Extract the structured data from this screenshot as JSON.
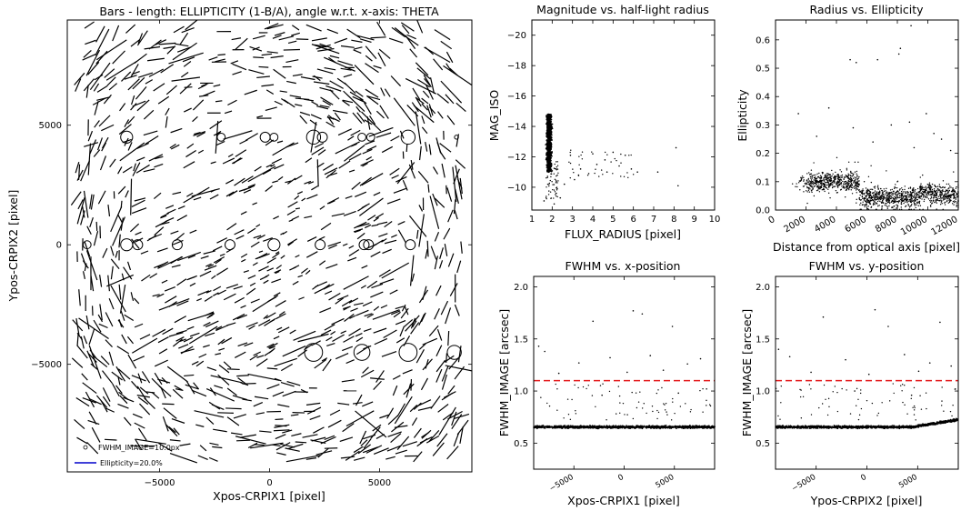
{
  "chart_data": [
    {
      "type": "scatter",
      "title": "Bars - length: ELLIPTICITY (1-B/A), angle w.r.t. x-axis: THETA",
      "xlabel": "Xpos-CRPIX1 [pixel]",
      "ylabel": "Ypos-CRPIX2 [pixel]",
      "xlim": [
        -9200,
        9200
      ],
      "ylim": [
        -9500,
        9400
      ],
      "xticks": [
        -5000,
        0,
        5000
      ],
      "yticks": [
        -5000,
        0,
        5000
      ],
      "xtick_labels": [
        "−5000",
        "0",
        "5000"
      ],
      "ytick_labels": [
        "−5000",
        "0",
        "5000"
      ],
      "grid": false,
      "legend": "bottom-left",
      "legend_entries": [
        {
          "label": "FWHM_IMAGE=10.0px",
          "marker": "circle"
        },
        {
          "label": "Ellipticity=20.0%",
          "marker": "line",
          "color": "#0000cc"
        }
      ],
      "circles": [
        {
          "x": -6500,
          "y": 4500,
          "fwhm": 6
        },
        {
          "x": -2200,
          "y": 4500,
          "fwhm": 4
        },
        {
          "x": -200,
          "y": 4500,
          "fwhm": 5
        },
        {
          "x": 200,
          "y": 4500,
          "fwhm": 4
        },
        {
          "x": 2000,
          "y": 4500,
          "fwhm": 7
        },
        {
          "x": 2400,
          "y": 4500,
          "fwhm": 5
        },
        {
          "x": 4200,
          "y": 4500,
          "fwhm": 4
        },
        {
          "x": 4600,
          "y": 4500,
          "fwhm": 4
        },
        {
          "x": 6300,
          "y": 4500,
          "fwhm": 7
        },
        {
          "x": 8500,
          "y": 4500,
          "fwhm": 2
        },
        {
          "x": -8300,
          "y": 0,
          "fwhm": 4
        },
        {
          "x": -6500,
          "y": 0,
          "fwhm": 6
        },
        {
          "x": -6000,
          "y": 0,
          "fwhm": 5
        },
        {
          "x": -4200,
          "y": 0,
          "fwhm": 5
        },
        {
          "x": -1800,
          "y": 0,
          "fwhm": 5
        },
        {
          "x": 200,
          "y": 0,
          "fwhm": 6
        },
        {
          "x": 2300,
          "y": 0,
          "fwhm": 5
        },
        {
          "x": 4300,
          "y": 0,
          "fwhm": 5
        },
        {
          "x": 4500,
          "y": 0,
          "fwhm": 5
        },
        {
          "x": 6400,
          "y": 0,
          "fwhm": 5
        },
        {
          "x": 2000,
          "y": -4500,
          "fwhm": 9
        },
        {
          "x": 4200,
          "y": -4500,
          "fwhm": 8
        },
        {
          "x": 6300,
          "y": -4500,
          "fwhm": 9
        },
        {
          "x": 8400,
          "y": -4500,
          "fwhm": 7
        }
      ]
    },
    {
      "type": "scatter",
      "title": "Magnitude vs. half-light radius",
      "xlabel": "FLUX_RADIUS [pixel]",
      "ylabel": "MAG_ISO",
      "xlim": [
        1,
        10
      ],
      "ylim": [
        -8.5,
        -21
      ],
      "xticks": [
        1,
        2,
        3,
        4,
        5,
        6,
        7,
        8,
        9,
        10
      ],
      "yticks": [
        -10,
        -12,
        -14,
        -16,
        -18,
        -20
      ],
      "ytick_labels": [
        "−10",
        "−12",
        "−14",
        "−16",
        "−18",
        "−20"
      ],
      "y_inverted": true,
      "grid": false,
      "stellar_locus": {
        "x_center": 1.85,
        "x_width": 0.18,
        "mag_range": [
          -11,
          -14.8
        ]
      },
      "points": [
        {
          "x": 3.1,
          "y": -10.5
        },
        {
          "x": 3.4,
          "y": -11.2
        },
        {
          "x": 3.8,
          "y": -10.9
        },
        {
          "x": 4.2,
          "y": -11.5
        },
        {
          "x": 4.6,
          "y": -11.8
        },
        {
          "x": 5.0,
          "y": -12.3
        },
        {
          "x": 5.3,
          "y": -11.4
        },
        {
          "x": 5.6,
          "y": -12.1
        },
        {
          "x": 6.2,
          "y": -11.0
        },
        {
          "x": 7.2,
          "y": -11.0
        },
        {
          "x": 8.2,
          "y": -10.1
        },
        {
          "x": 8.1,
          "y": -12.6
        },
        {
          "x": 2.4,
          "y": -9.3
        },
        {
          "x": 2.6,
          "y": -10.2
        },
        {
          "x": 2.9,
          "y": -12.1
        },
        {
          "x": 3.3,
          "y": -10.8
        },
        {
          "x": 4.0,
          "y": -12.2
        },
        {
          "x": 4.7,
          "y": -11.0
        },
        {
          "x": 5.9,
          "y": -11.2
        },
        {
          "x": 2.2,
          "y": -9.6
        },
        {
          "x": 1.6,
          "y": -9.1
        },
        {
          "x": 2.1,
          "y": -8.9
        }
      ]
    },
    {
      "type": "scatter",
      "title": "Radius vs. Ellipticity",
      "xlabel": "Distance from optical axis [pixel]",
      "ylabel": "Ellipticity",
      "xlim": [
        0,
        12000
      ],
      "ylim": [
        0,
        0.67
      ],
      "xticks": [
        0,
        2000,
        4000,
        6000,
        8000,
        10000,
        12000
      ],
      "yticks": [
        0.0,
        0.1,
        0.2,
        0.3,
        0.4,
        0.5,
        0.6
      ],
      "ytick_labels": [
        "0.0",
        "0.1",
        "0.2",
        "0.3",
        "0.4",
        "0.5",
        "0.6"
      ],
      "grid": false,
      "outliers": [
        {
          "x": 8900,
          "y": 0.65
        },
        {
          "x": 8200,
          "y": 0.57
        },
        {
          "x": 8100,
          "y": 0.55
        },
        {
          "x": 4900,
          "y": 0.53
        },
        {
          "x": 5300,
          "y": 0.52
        },
        {
          "x": 6700,
          "y": 0.53
        },
        {
          "x": 3500,
          "y": 0.36
        },
        {
          "x": 1500,
          "y": 0.34
        },
        {
          "x": 9900,
          "y": 0.34
        },
        {
          "x": 8800,
          "y": 0.31
        },
        {
          "x": 7600,
          "y": 0.3
        },
        {
          "x": 5100,
          "y": 0.29
        },
        {
          "x": 10400,
          "y": 0.27
        },
        {
          "x": 10900,
          "y": 0.25
        },
        {
          "x": 6400,
          "y": 0.24
        },
        {
          "x": 2700,
          "y": 0.26
        },
        {
          "x": 9100,
          "y": 0.22
        },
        {
          "x": 11500,
          "y": 0.21
        }
      ]
    },
    {
      "type": "scatter",
      "title": "FWHM vs. x-position",
      "xlabel": "Xpos-CRPIX1 [pixel]",
      "ylabel": "FWHM_IMAGE [arcsec]",
      "xlim": [
        -9000,
        9000
      ],
      "ylim": [
        0.25,
        2.1
      ],
      "xticks": [
        -5000,
        0,
        5000
      ],
      "xtick_labels": [
        "−5000",
        "0",
        "5000"
      ],
      "yticks": [
        0.5,
        1.0,
        1.5,
        2.0
      ],
      "ytick_labels": [
        "0.5",
        "1.0",
        "1.5",
        "2.0"
      ],
      "grid": false,
      "threshold_line": {
        "y": 1.1,
        "color": "#e41a1c",
        "style": "dashed"
      },
      "baseline": {
        "y_low": 0.63,
        "y_high": 0.68
      },
      "outliers": [
        {
          "x": 1800,
          "y": 1.74
        },
        {
          "x": 900,
          "y": 1.77
        },
        {
          "x": -3100,
          "y": 1.67
        },
        {
          "x": 4800,
          "y": 1.62
        },
        {
          "x": -8500,
          "y": 1.43
        },
        {
          "x": -7900,
          "y": 1.38
        },
        {
          "x": -4500,
          "y": 1.27
        },
        {
          "x": -1400,
          "y": 1.32
        },
        {
          "x": 2600,
          "y": 1.34
        },
        {
          "x": 6300,
          "y": 1.26
        },
        {
          "x": 7600,
          "y": 1.31
        },
        {
          "x": -6500,
          "y": 1.17
        },
        {
          "x": 300,
          "y": 1.18
        },
        {
          "x": 3900,
          "y": 1.2
        },
        {
          "x": 8200,
          "y": 1.02
        },
        {
          "x": -2200,
          "y": 0.96
        },
        {
          "x": 5400,
          "y": 0.98
        }
      ]
    },
    {
      "type": "scatter",
      "title": "FWHM vs. y-position",
      "xlabel": "Ypos-CRPIX2 [pixel]",
      "ylabel": "FWHM_IMAGE [arcsec]",
      "xlim": [
        -9000,
        9000
      ],
      "ylim": [
        0.25,
        2.1
      ],
      "xticks": [
        -5000,
        0,
        5000
      ],
      "xtick_labels": [
        "−5000",
        "0",
        "5000"
      ],
      "yticks": [
        0.5,
        1.0,
        1.5,
        2.0
      ],
      "ytick_labels": [
        "0.5",
        "1.0",
        "1.5",
        "2.0"
      ],
      "grid": false,
      "threshold_line": {
        "y": 1.1,
        "color": "#e41a1c",
        "style": "dashed"
      },
      "baseline": {
        "y_low": 0.63,
        "y_high": 0.68
      },
      "outliers": [
        {
          "x": 800,
          "y": 1.78
        },
        {
          "x": -4300,
          "y": 1.71
        },
        {
          "x": 2100,
          "y": 1.62
        },
        {
          "x": 7200,
          "y": 1.66
        },
        {
          "x": -8700,
          "y": 1.4
        },
        {
          "x": -7600,
          "y": 1.33
        },
        {
          "x": -2100,
          "y": 1.3
        },
        {
          "x": 3700,
          "y": 1.35
        },
        {
          "x": 6200,
          "y": 1.27
        },
        {
          "x": 8300,
          "y": 1.24
        },
        {
          "x": -5500,
          "y": 1.18
        },
        {
          "x": 200,
          "y": 1.16
        },
        {
          "x": 5100,
          "y": 1.19
        },
        {
          "x": -1200,
          "y": 1.0
        },
        {
          "x": 4400,
          "y": 0.96
        },
        {
          "x": 8700,
          "y": 1.02
        }
      ]
    }
  ]
}
